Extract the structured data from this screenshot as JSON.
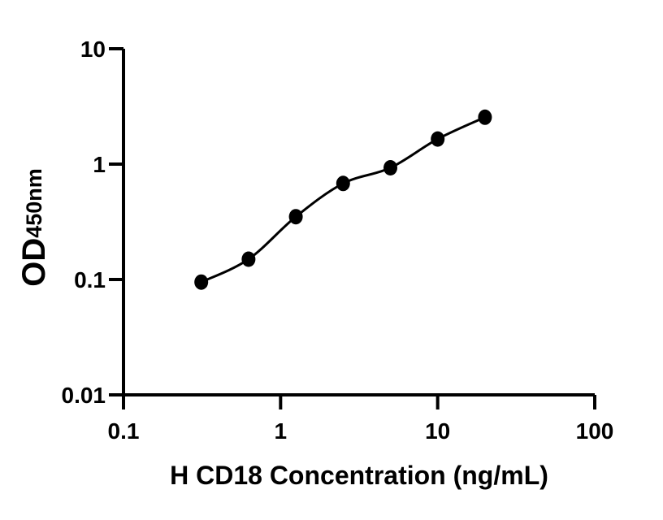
{
  "figure": {
    "background": "#ffffff",
    "ink_color": "#000000"
  },
  "chart_data": {
    "type": "scatter",
    "title": "",
    "xlabel": "H CD18 Concentration (ng/mL)",
    "ylabel": "OD450nm",
    "ylabel_main": "OD",
    "ylabel_sub": "450nm",
    "x_scale": "log10",
    "y_scale": "log10",
    "xlim": [
      0.1,
      100
    ],
    "ylim": [
      0.01,
      10
    ],
    "grid": false,
    "legend": false,
    "x_ticks": [
      {
        "value": 0.1,
        "label": "0.1"
      },
      {
        "value": 1,
        "label": "1"
      },
      {
        "value": 10,
        "label": "10"
      },
      {
        "value": 100,
        "label": "100"
      }
    ],
    "y_ticks": [
      {
        "value": 10,
        "label": "10"
      },
      {
        "value": 1,
        "label": "1"
      },
      {
        "value": 0.1,
        "label": "0.1"
      },
      {
        "value": 0.01,
        "label": "0.01"
      }
    ],
    "series": [
      {
        "name": "standard-curve",
        "marker": "filled-circle",
        "line": "fitted-curve",
        "color": "#000000",
        "points": [
          {
            "x": 0.3125,
            "y": 0.095
          },
          {
            "x": 0.625,
            "y": 0.15
          },
          {
            "x": 1.25,
            "y": 0.35
          },
          {
            "x": 2.5,
            "y": 0.68
          },
          {
            "x": 5,
            "y": 0.93
          },
          {
            "x": 10,
            "y": 1.65
          },
          {
            "x": 20,
            "y": 2.55
          }
        ]
      }
    ]
  }
}
